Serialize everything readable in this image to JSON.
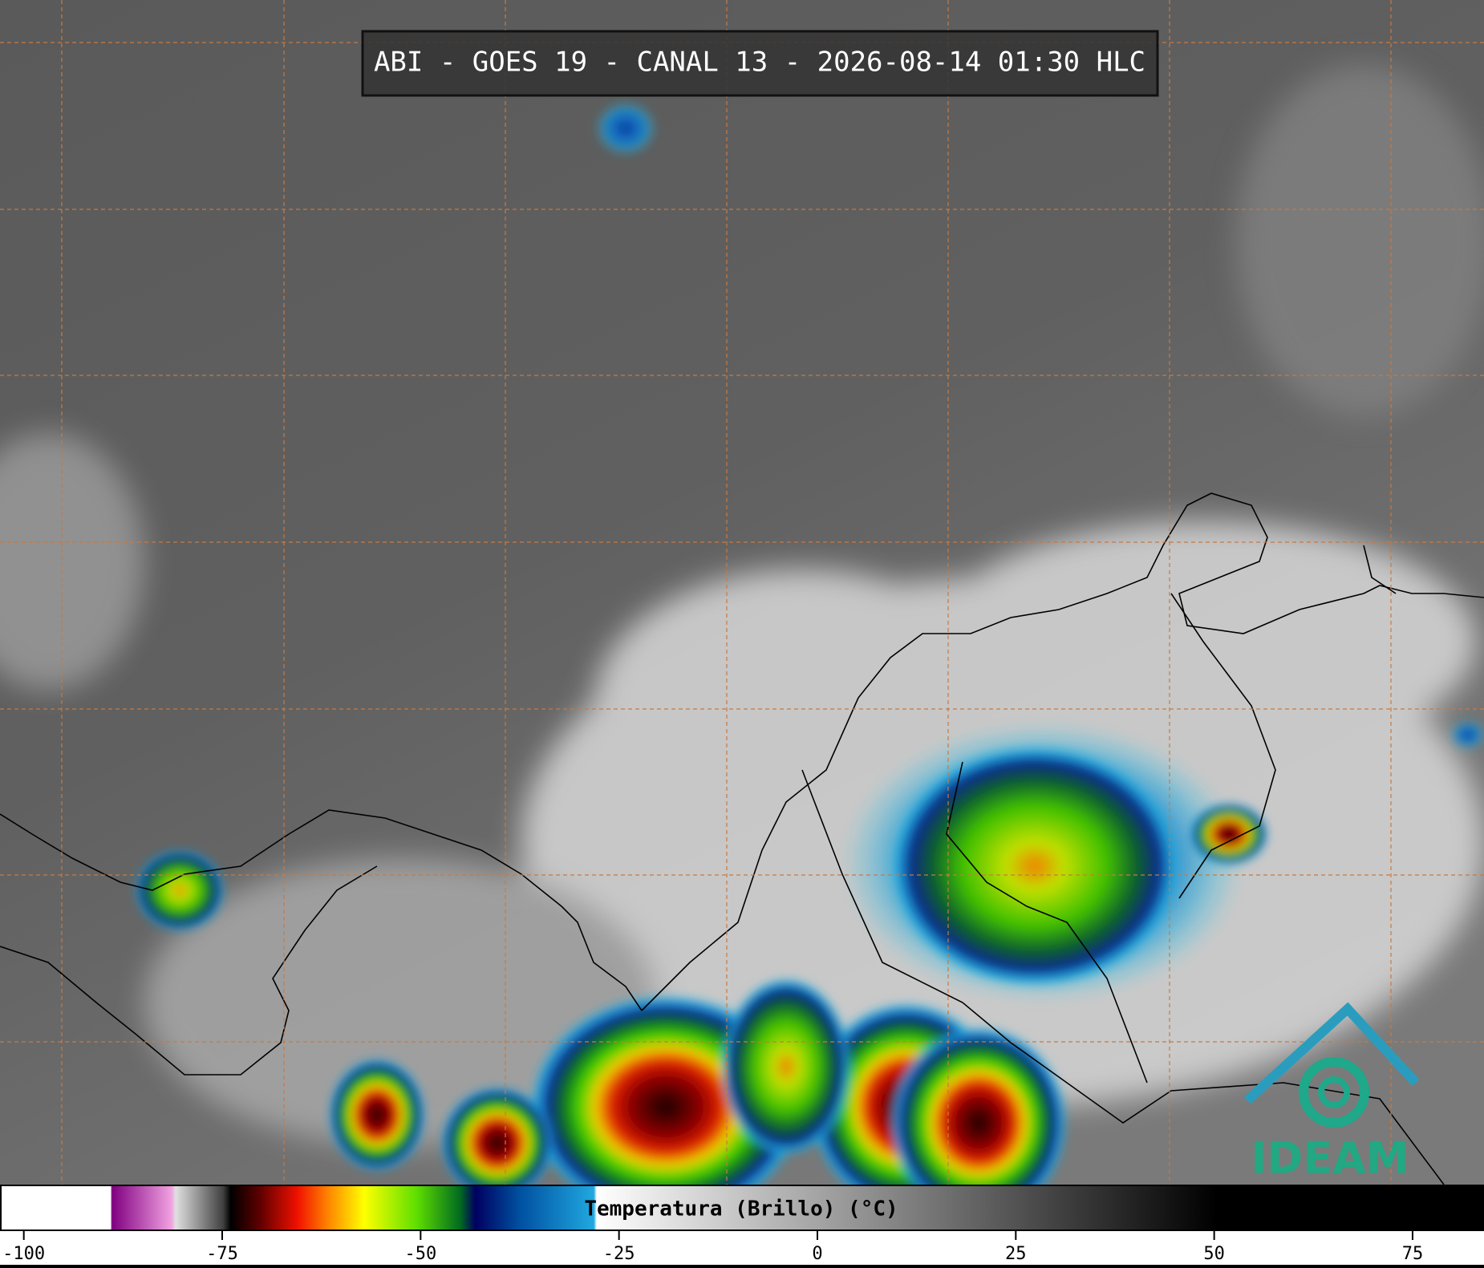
{
  "header": {
    "title": "ABI - GOES 19 - CANAL 13 - 2026-08-14 01:30 HLC"
  },
  "colorbar": {
    "label": "Temperatura (Brillo) (°C)",
    "lim": [
      -103,
      84
    ],
    "ticks": [
      -100,
      -75,
      -50,
      -25,
      0,
      25,
      50,
      75
    ]
  },
  "logo": {
    "text": "IDEAM"
  }
}
